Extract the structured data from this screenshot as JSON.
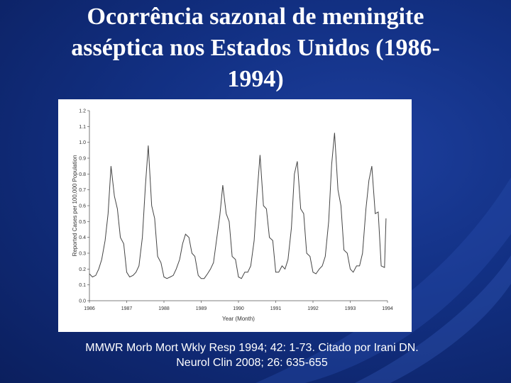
{
  "slide": {
    "title_line1": "Ocorrência sazonal de meningite",
    "title_line2": "asséptica nos Estados Unidos (1986-",
    "title_line3": "1994)",
    "caption_line1": "MMWR Morb Mort Wkly Resp 1994; 42: 1-73. Citado por Irani DN.",
    "caption_line2": "Neurol Clin 2008; 26: 635-655",
    "background_color": "#123083",
    "text_color": "#ffffff"
  },
  "chart_data": {
    "type": "line",
    "xlabel": "Year (Month)",
    "ylabel": "Reported Cases per 100,000 Population",
    "xlim": [
      1986,
      1994
    ],
    "ylim": [
      0.0,
      1.2
    ],
    "x_ticks": [
      "1986",
      "1987",
      "1988",
      "1989",
      "1990",
      "1991",
      "1992",
      "1993",
      "1994"
    ],
    "y_ticks": [
      "0.0",
      "0.1",
      "0.2",
      "0.3",
      "0.4",
      "0.5",
      "0.6",
      "0.7",
      "0.8",
      "0.9",
      "1.0",
      "1.1",
      "1.2"
    ],
    "grid": false,
    "line_color": "#444444",
    "series": [
      {
        "x": [
          1986.0,
          1986.08,
          1986.17,
          1986.25,
          1986.33,
          1986.42,
          1986.5,
          1986.58,
          1986.67,
          1986.75,
          1986.83,
          1986.92,
          1987.0,
          1987.08,
          1987.17,
          1987.25,
          1987.33,
          1987.42,
          1987.5,
          1987.58,
          1987.67,
          1987.75,
          1987.83,
          1987.92,
          1988.0,
          1988.08,
          1988.17,
          1988.25,
          1988.33,
          1988.42,
          1988.5,
          1988.58,
          1988.67,
          1988.75,
          1988.83,
          1988.92,
          1989.0,
          1989.08,
          1989.17,
          1989.25,
          1989.33,
          1989.42,
          1989.5,
          1989.58,
          1989.67,
          1989.75,
          1989.83,
          1989.92,
          1990.0,
          1990.08,
          1990.17,
          1990.25,
          1990.33,
          1990.42,
          1990.5,
          1990.58,
          1990.67,
          1990.75,
          1990.83,
          1990.92,
          1991.0,
          1991.08,
          1991.17,
          1991.25,
          1991.33,
          1991.42,
          1991.5,
          1991.58,
          1991.67,
          1991.75,
          1991.83,
          1991.92,
          1992.0,
          1992.08,
          1992.17,
          1992.25,
          1992.33,
          1992.42,
          1992.5,
          1992.58,
          1992.67,
          1992.75,
          1992.83,
          1992.92,
          1993.0,
          1993.08,
          1993.17,
          1993.25,
          1993.33,
          1993.42,
          1993.5,
          1993.58,
          1993.67,
          1993.75,
          1993.83,
          1993.92,
          1993.96
        ],
        "y": [
          0.17,
          0.15,
          0.16,
          0.2,
          0.26,
          0.38,
          0.55,
          0.85,
          0.66,
          0.58,
          0.4,
          0.36,
          0.18,
          0.15,
          0.16,
          0.18,
          0.22,
          0.4,
          0.72,
          0.98,
          0.6,
          0.52,
          0.28,
          0.24,
          0.15,
          0.14,
          0.15,
          0.16,
          0.2,
          0.26,
          0.36,
          0.42,
          0.4,
          0.3,
          0.28,
          0.16,
          0.14,
          0.14,
          0.17,
          0.2,
          0.24,
          0.4,
          0.54,
          0.73,
          0.55,
          0.5,
          0.28,
          0.26,
          0.15,
          0.14,
          0.18,
          0.18,
          0.22,
          0.38,
          0.68,
          0.92,
          0.6,
          0.58,
          0.4,
          0.38,
          0.18,
          0.18,
          0.22,
          0.2,
          0.26,
          0.46,
          0.8,
          0.88,
          0.58,
          0.55,
          0.3,
          0.28,
          0.18,
          0.17,
          0.2,
          0.22,
          0.28,
          0.5,
          0.86,
          1.06,
          0.7,
          0.6,
          0.32,
          0.3,
          0.2,
          0.18,
          0.22,
          0.22,
          0.3,
          0.58,
          0.76,
          0.85,
          0.55,
          0.56,
          0.22,
          0.21,
          0.52
        ]
      }
    ]
  }
}
